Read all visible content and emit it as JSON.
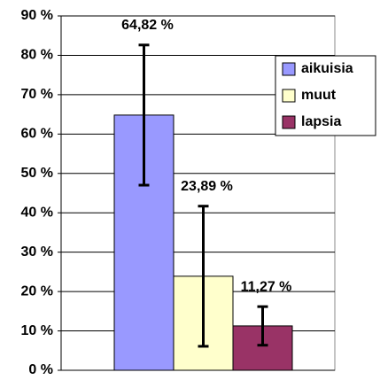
{
  "chart_data": {
    "type": "bar",
    "categories": [
      null
    ],
    "series": [
      {
        "name": "aikuisia",
        "color": "#9999ff",
        "values": [
          64.82
        ],
        "value_labels": [
          "64,82 %"
        ],
        "errors": [
          17.8
        ]
      },
      {
        "name": "muut",
        "color": "#ffffcc",
        "values": [
          23.89
        ],
        "value_labels": [
          "23,89 %"
        ],
        "errors": [
          17.8
        ]
      },
      {
        "name": "lapsia",
        "color": "#993366",
        "values": [
          11.27
        ],
        "value_labels": [
          "11,27 %"
        ],
        "errors": [
          4.9
        ]
      }
    ],
    "ylim": [
      0,
      90
    ],
    "yticks": [
      {
        "value": 0,
        "label": "0 %"
      },
      {
        "value": 10,
        "label": "10 %"
      },
      {
        "value": 20,
        "label": "20 %"
      },
      {
        "value": 30,
        "label": "30 %"
      },
      {
        "value": 40,
        "label": "40 %"
      },
      {
        "value": 50,
        "label": "50 %"
      },
      {
        "value": 60,
        "label": "60 %"
      },
      {
        "value": 70,
        "label": "70 %"
      },
      {
        "value": 80,
        "label": "80 %"
      },
      {
        "value": 90,
        "label": "90 %"
      }
    ],
    "grid": true,
    "legend": "right"
  }
}
